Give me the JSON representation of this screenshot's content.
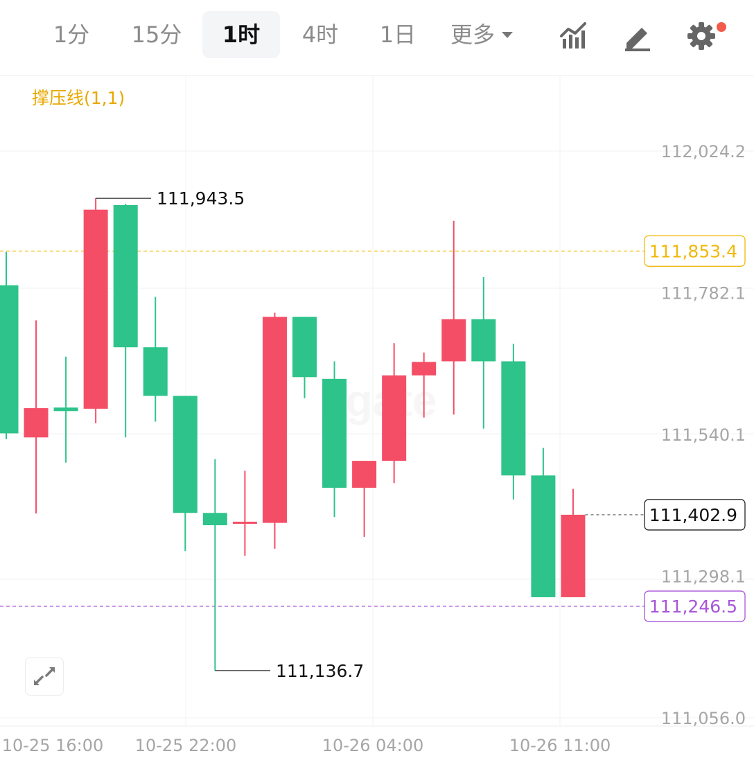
{
  "toolbar": {
    "tabs": [
      {
        "label": "1分",
        "active": false
      },
      {
        "label": "15分",
        "active": false
      },
      {
        "label": "1时",
        "active": true
      },
      {
        "label": "4时",
        "active": false
      },
      {
        "label": "1日",
        "active": false
      }
    ],
    "more_label": "更多",
    "icons": [
      "indicator-chart-icon",
      "draw-pen-icon",
      "settings-gear-icon"
    ],
    "settings_has_notification": true
  },
  "indicator_label": "撑压线(1,1)",
  "colors": {
    "up": "#2dc38a",
    "down": "#f44e67",
    "resistance": "#f0b90b",
    "support": "#a855d8",
    "grid": "#f2f2f2",
    "axis_text": "#a6a6a6"
  },
  "chart_data": {
    "type": "candlestick",
    "interval": "1时",
    "y_axis_labels": [
      "112,024.2",
      "111,782.1",
      "111,540.1",
      "111,298.1",
      "111,056.0"
    ],
    "y_axis_values": [
      112024.2,
      111782.1,
      111540.1,
      111298.1,
      111056.0
    ],
    "x_axis_labels": [
      "10-25 16:00",
      "10-25 22:00",
      "10-26 04:00",
      "10-26 11:00"
    ],
    "lines": {
      "resistance": {
        "label": "111,853.4",
        "value": 111853.4
      },
      "support": {
        "label": "111,246.5",
        "value": 111246.5
      },
      "last_price": {
        "label": "111,402.9",
        "value": 111402.9
      }
    },
    "annotations": {
      "high": {
        "label": "111,943.5",
        "value": 111943.5,
        "candle": 3
      },
      "low": {
        "label": "111,136.7",
        "value": 111136.7,
        "candle": 7
      }
    },
    "candles": [
      {
        "open": 111795,
        "close": 111542,
        "high": 111852,
        "low": 111532,
        "color": "up"
      },
      {
        "open": 111585,
        "close": 111535,
        "high": 111735,
        "low": 111405,
        "color": "down"
      },
      {
        "open": 111580,
        "close": 111586,
        "high": 111673,
        "low": 111492,
        "color": "up"
      },
      {
        "open": 111924,
        "close": 111584,
        "high": 111943.5,
        "low": 111559,
        "color": "down"
      },
      {
        "open": 111932,
        "close": 111689,
        "high": 111934,
        "low": 111535,
        "color": "up"
      },
      {
        "open": 111689,
        "close": 111606,
        "high": 111775,
        "low": 111562,
        "color": "up"
      },
      {
        "open": 111606,
        "close": 111406,
        "high": 111606,
        "low": 111341,
        "color": "up"
      },
      {
        "open": 111406,
        "close": 111385,
        "high": 111498,
        "low": 111136.7,
        "color": "up"
      },
      {
        "open": 111389,
        "close": 111391,
        "high": 111478,
        "low": 111333,
        "color": "down"
      },
      {
        "open": 111389,
        "close": 111741,
        "high": 111748,
        "low": 111345,
        "color": "down"
      },
      {
        "open": 111741,
        "close": 111638,
        "high": 111741,
        "low": 111602,
        "color": "up"
      },
      {
        "open": 111635,
        "close": 111449,
        "high": 111665,
        "low": 111399,
        "color": "up"
      },
      {
        "open": 111449,
        "close": 111495,
        "high": 111495,
        "low": 111365,
        "color": "down"
      },
      {
        "open": 111495,
        "close": 111641,
        "high": 111696,
        "low": 111457,
        "color": "down"
      },
      {
        "open": 111641,
        "close": 111664,
        "high": 111680,
        "low": 111569,
        "color": "down"
      },
      {
        "open": 111665,
        "close": 111737,
        "high": 111905,
        "low": 111574,
        "color": "down"
      },
      {
        "open": 111737,
        "close": 111665,
        "high": 111809,
        "low": 111550,
        "color": "up"
      },
      {
        "open": 111665,
        "close": 111470,
        "high": 111695,
        "low": 111429,
        "color": "up"
      },
      {
        "open": 111470,
        "close": 111262,
        "high": 111517,
        "low": 111262,
        "color": "up"
      },
      {
        "open": 111402.9,
        "close": 111262,
        "high": 111447,
        "low": 111262,
        "color": "down"
      }
    ]
  }
}
